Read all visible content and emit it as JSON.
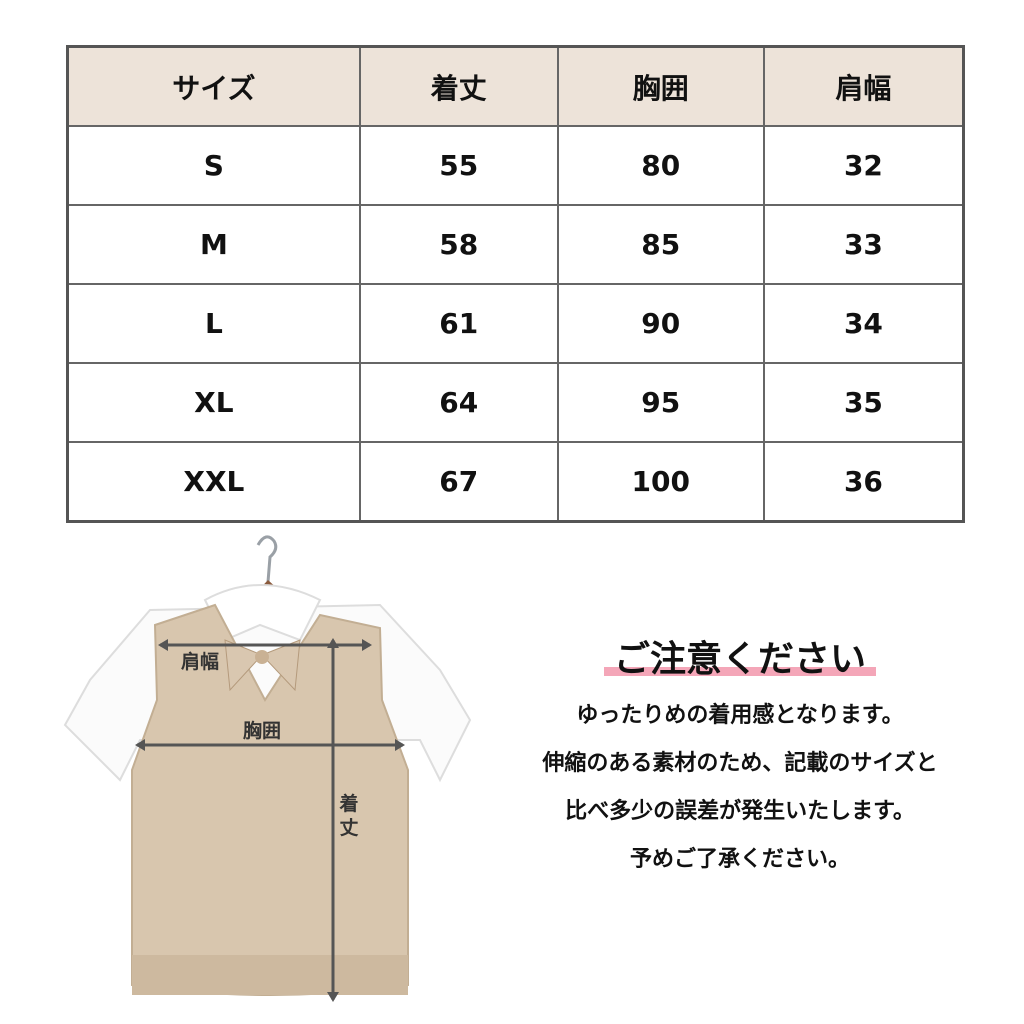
{
  "table": {
    "headers": [
      "サイズ",
      "着丈",
      "胸囲",
      "肩幅"
    ],
    "rows": [
      [
        "S",
        "55",
        "80",
        "32"
      ],
      [
        "M",
        "58",
        "85",
        "33"
      ],
      [
        "L",
        "61",
        "90",
        "34"
      ],
      [
        "XL",
        "64",
        "95",
        "35"
      ],
      [
        "XXL",
        "67",
        "100",
        "36"
      ]
    ],
    "header_bg": "#ede3d9"
  },
  "garment": {
    "labels": {
      "shoulder": "肩幅",
      "chest": "胸囲",
      "length": "着丈"
    },
    "vest_color": "#d8c6ae"
  },
  "notes": {
    "title": "ご注意ください",
    "underline_color": "#f4a6b8",
    "lines": [
      "ゆったりめの着用感となります。",
      "伸縮のある素材のため、記載のサイズと",
      "比べ多少の誤差が発生いたします。",
      "予めご了承ください。"
    ]
  }
}
